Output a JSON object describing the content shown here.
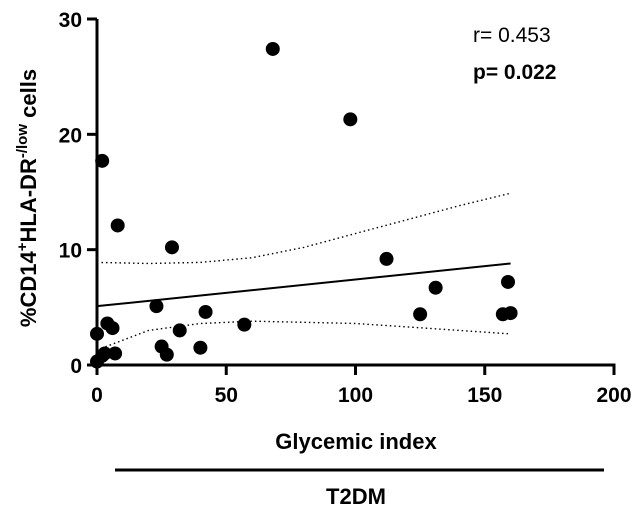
{
  "chart_data": {
    "type": "scatter",
    "xlabel": "Glycemic index",
    "ylabel_parts": {
      "prefix": "%CD14",
      "sup1": "+",
      "middle": "HLA-DR",
      "sup2": "-/low",
      "suffix": " cells"
    },
    "group_label": "T2DM",
    "xlim": [
      0,
      200
    ],
    "ylim": [
      0,
      30
    ],
    "x_ticks": [
      0,
      50,
      100,
      150,
      200
    ],
    "y_ticks": [
      0,
      10,
      20,
      30
    ],
    "grid": false,
    "annotations": {
      "r_text": "r= 0.453",
      "p_text": "p= 0.022"
    },
    "points": [
      {
        "x": 0,
        "y": 2.7
      },
      {
        "x": 0,
        "y": 0.3
      },
      {
        "x": 2,
        "y": 17.7
      },
      {
        "x": 2,
        "y": 0.8
      },
      {
        "x": 3,
        "y": 1.0
      },
      {
        "x": 4,
        "y": 3.6
      },
      {
        "x": 6,
        "y": 3.2
      },
      {
        "x": 7,
        "y": 1.0
      },
      {
        "x": 8,
        "y": 12.1
      },
      {
        "x": 23,
        "y": 5.1
      },
      {
        "x": 25,
        "y": 1.6
      },
      {
        "x": 27,
        "y": 0.9
      },
      {
        "x": 29,
        "y": 10.2
      },
      {
        "x": 32,
        "y": 3.0
      },
      {
        "x": 40,
        "y": 1.5
      },
      {
        "x": 42,
        "y": 4.6
      },
      {
        "x": 57,
        "y": 3.5
      },
      {
        "x": 68,
        "y": 27.4
      },
      {
        "x": 98,
        "y": 21.3
      },
      {
        "x": 112,
        "y": 9.2
      },
      {
        "x": 125,
        "y": 4.4
      },
      {
        "x": 131,
        "y": 6.7
      },
      {
        "x": 157,
        "y": 4.4
      },
      {
        "x": 159,
        "y": 7.2
      },
      {
        "x": 160,
        "y": 4.5
      }
    ],
    "regression": {
      "x": [
        0,
        160
      ],
      "y": [
        5.1,
        8.8
      ]
    },
    "ci_upper": {
      "x": [
        0,
        20,
        40,
        60,
        80,
        100,
        120,
        140,
        160
      ],
      "y": [
        8.9,
        8.8,
        8.9,
        9.3,
        10.2,
        11.4,
        12.6,
        13.8,
        14.9
      ]
    },
    "ci_lower": {
      "x": [
        0,
        20,
        40,
        60,
        80,
        100,
        120,
        140,
        160
      ],
      "y": [
        1.3,
        3.0,
        3.6,
        3.8,
        3.7,
        3.6,
        3.3,
        3.0,
        2.7
      ]
    }
  }
}
